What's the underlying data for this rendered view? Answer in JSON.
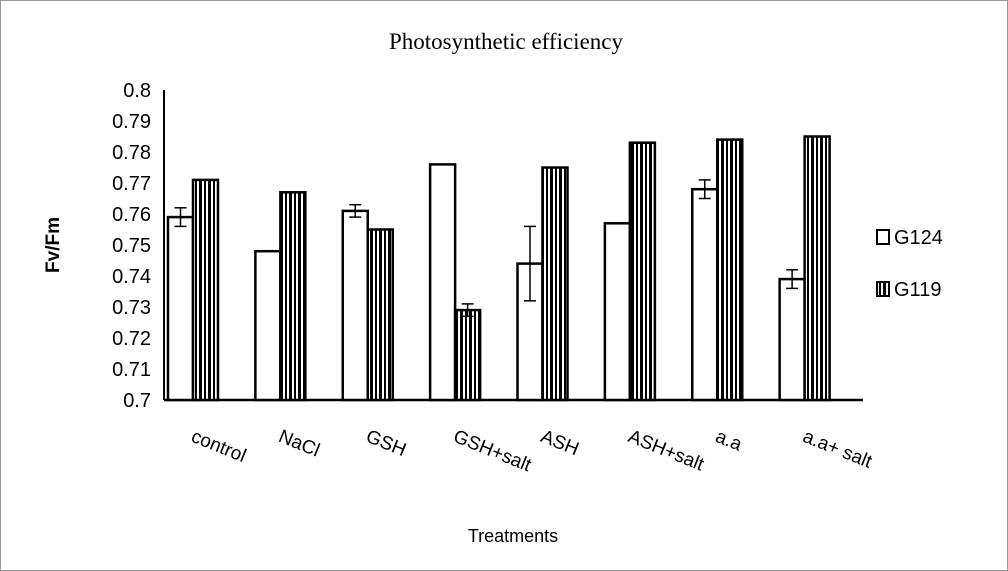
{
  "chart_data": {
    "type": "bar",
    "title": "Photosynthetic efficiency",
    "xlabel": "Treatments",
    "ylabel": "Fv/Fm",
    "ylim": [
      0.7,
      0.8
    ],
    "yticks": [
      "0.7",
      "0.71",
      "0.72",
      "0.73",
      "0.74",
      "0.75",
      "0.76",
      "0.77",
      "0.78",
      "0.79",
      "0.8"
    ],
    "categories": [
      "control",
      "NaCl",
      "GSH",
      "GSH+salt",
      "ASH",
      "ASH+salt",
      "a.a",
      "a.a+ salt"
    ],
    "series": [
      {
        "name": "G124",
        "pattern": "white",
        "values": [
          0.759,
          0.748,
          0.761,
          0.776,
          0.744,
          0.757,
          0.768,
          0.739
        ],
        "errors": [
          0.003,
          0,
          0.002,
          0,
          0.012,
          0,
          0.003,
          0.003
        ]
      },
      {
        "name": "G119",
        "pattern": "vertical-stripes",
        "values": [
          0.771,
          0.767,
          0.755,
          0.729,
          0.775,
          0.783,
          0.784,
          0.785
        ],
        "errors": [
          0,
          0,
          0,
          0.002,
          0,
          0,
          0,
          0
        ]
      }
    ],
    "legend_position": "right",
    "grid": false
  }
}
